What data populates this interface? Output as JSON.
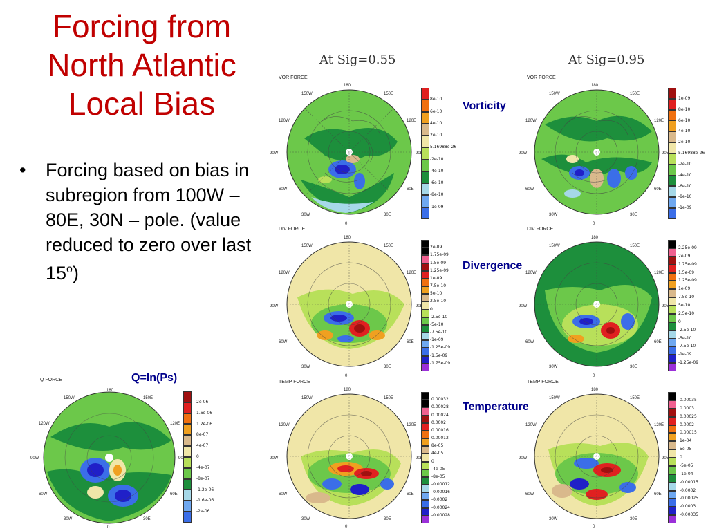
{
  "slide": {
    "title": "Forcing from North Atlantic Local Bias",
    "bullet": "Forcing based on bias in subregion from 100W – 80E, 30N – pole. (value reduced to zero over last 15",
    "bullet_sup": "o",
    "bullet_end": ")"
  },
  "columns": {
    "left": "At Sig=0.55",
    "right": "At Sig=0.95"
  },
  "tags": {
    "vorticity": "Vorticity",
    "divergence": "Divergence",
    "temperature": "Temperature",
    "q": "Q=ln(Ps)"
  },
  "panels": {
    "vor": "VOR FORCE",
    "div": "DIV FORCE",
    "temp": "TEMP FORCE",
    "q": "Q FORCE"
  },
  "lon": {
    "l180": "180",
    "l150w": "150W",
    "l150e": "150E",
    "l120w": "120W",
    "l120e": "120E",
    "l90w": "90W",
    "l90e": "90E",
    "l60w": "60W",
    "l60e": "60E",
    "l30w": "30W",
    "l30e": "30E",
    "l0": "0"
  },
  "colorbars": {
    "vor55": [
      "8e-10",
      "6e-10",
      "4e-10",
      "2e-10",
      "5.16988e-26",
      "-2e-10",
      "-4e-10",
      "-6e-10",
      "-8e-10",
      "-1e-09"
    ],
    "vor95": [
      "1e-09",
      "8e-10",
      "6e-10",
      "4e-10",
      "2e-10",
      "5.16988e-26",
      "-2e-10",
      "-4e-10",
      "-6e-10",
      "-8e-10",
      "-1e-09"
    ],
    "div55": [
      "2e-09",
      "1.75e-09",
      "1.5e-09",
      "1.25e-09",
      "1e-09",
      "7.5e-10",
      "5e-10",
      "2.5e-10",
      "0",
      "-2.5e-10",
      "-5e-10",
      "-7.5e-10",
      "-1e-09",
      "-1.25e-09",
      "-1.5e-09",
      "-1.75e-09"
    ],
    "div95": [
      "2.25e-09",
      "2e-09",
      "1.75e-09",
      "1.5e-09",
      "1.25e-09",
      "1e-09",
      "7.5e-10",
      "5e-10",
      "2.5e-10",
      "0",
      "-2.5e-10",
      "-5e-10",
      "-7.5e-10",
      "-1e-09",
      "-1.25e-09"
    ],
    "temp55": [
      "0.00032",
      "0.00028",
      "0.00024",
      "0.0002",
      "0.00016",
      "0.00012",
      "8e-05",
      "4e-05",
      "0",
      "-4e-05",
      "-8e-05",
      "-0.00012",
      "-0.00016",
      "-0.0002",
      "-0.00024",
      "-0.00028"
    ],
    "temp95": [
      "0.00035",
      "0.0003",
      "0.00025",
      "0.0002",
      "0.00015",
      "1e-04",
      "5e-05",
      "0",
      "-5e-05",
      "-1e-04",
      "-0.00015",
      "-0.0002",
      "-0.00025",
      "-0.0003",
      "-0.00035"
    ],
    "q": [
      "2e-06",
      "1.6e-06",
      "1.2e-06",
      "8e-07",
      "4e-07",
      "0",
      "-4e-07",
      "-8e-07",
      "-1.2e-06",
      "-1.6e-06",
      "-2e-06"
    ]
  },
  "colors": {
    "title": "#c00000",
    "tag": "#00008b",
    "scale": [
      "#9b30d9",
      "#2020c8",
      "#3b6ee8",
      "#6fa8f0",
      "#a6d8e8",
      "#1d8f3c",
      "#6cc84a",
      "#b8e05a",
      "#f0e6a8",
      "#d9b98c",
      "#f0a020",
      "#f07010",
      "#e02020",
      "#a01010",
      "#f06090",
      "#000000"
    ]
  }
}
